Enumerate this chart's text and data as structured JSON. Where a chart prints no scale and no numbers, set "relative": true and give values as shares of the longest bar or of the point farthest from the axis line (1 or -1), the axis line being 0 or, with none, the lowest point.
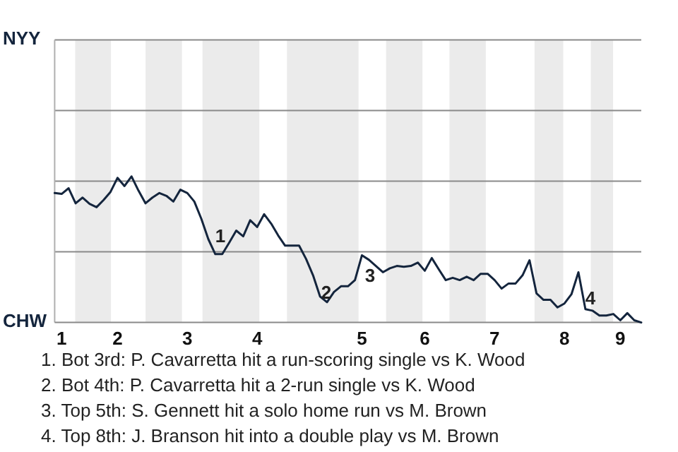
{
  "chart_data": {
    "type": "line",
    "categories": [
      null,
      "1",
      null,
      null,
      null,
      null,
      null,
      null,
      null,
      "2",
      null,
      null,
      null,
      null,
      null,
      null,
      null,
      null,
      null,
      "3",
      null,
      null,
      null,
      null,
      null,
      null,
      null,
      null,
      null,
      "4",
      null,
      null,
      null,
      null,
      null,
      null,
      null,
      null,
      null,
      null,
      null,
      null,
      null,
      null,
      "5",
      null,
      null,
      null,
      null,
      null,
      null,
      null,
      null,
      "6",
      null,
      null,
      null,
      null,
      null,
      null,
      null,
      null,
      null,
      "7",
      null,
      null,
      null,
      null,
      null,
      null,
      null,
      null,
      null,
      "8",
      null,
      null,
      null,
      null,
      null,
      null,
      null,
      "9",
      null,
      null,
      null
    ],
    "series": [
      {
        "color": "#14253d",
        "values": [
          0.886,
          0.88,
          0.919,
          0.816,
          0.855,
          0.812,
          0.789,
          0.838,
          0.894,
          0.99,
          0.934,
          1,
          0.903,
          0.816,
          0.855,
          0.886,
          0.867,
          0.828,
          0.909,
          0.886,
          0.828,
          0.71,
          0.571,
          0.468,
          0.468,
          0.547,
          0.629,
          0.59,
          0.7,
          0.654,
          0.741,
          0.677,
          0.596,
          0.526,
          0.526,
          0.526,
          0.435,
          0.323,
          0.178,
          0.139,
          0.209,
          0.248,
          0.248,
          0.29,
          0.46,
          0.429,
          0.387,
          0.344,
          0.371,
          0.387,
          0.381,
          0.387,
          0.41,
          0.354,
          0.441,
          0.364,
          0.29,
          0.306,
          0.29,
          0.313,
          0.29,
          0.333,
          0.333,
          0.29,
          0.232,
          0.267,
          0.267,
          0.323,
          0.426,
          0.199,
          0.155,
          0.155,
          0.103,
          0.13,
          0.193,
          0.344,
          0.091,
          0.081,
          0.048,
          0.048,
          0.058,
          0.015,
          0.064,
          0.015,
          0
        ]
      }
    ],
    "relative": true,
    "ref_lines": [
      {
        "axis": "y",
        "value": 0.484,
        "color": "#8a8a8a"
      },
      {
        "axis": "y",
        "value": 0.967,
        "color": "#8a8a8a"
      },
      {
        "axis": "y",
        "value": 1.451,
        "color": "#8a8a8a"
      },
      {
        "axis": "y",
        "value": 1.934,
        "color": "#8a8a8a"
      }
    ],
    "marker": "none",
    "annotations": [
      "NYY",
      "CHW",
      "1",
      "2",
      "3",
      "4",
      "1. Bot 3rd: P. Cavarretta hit a run-scoring single vs K. Wood",
      "2. Bot 4th: P. Cavarretta hit a 2-run single vs K. Wood",
      "3. Top 5th: S. Gennett hit a solo home run vs M. Brown",
      "4. Top 8th: J. Branson hit into a double play vs M. Brown"
    ]
  }
}
